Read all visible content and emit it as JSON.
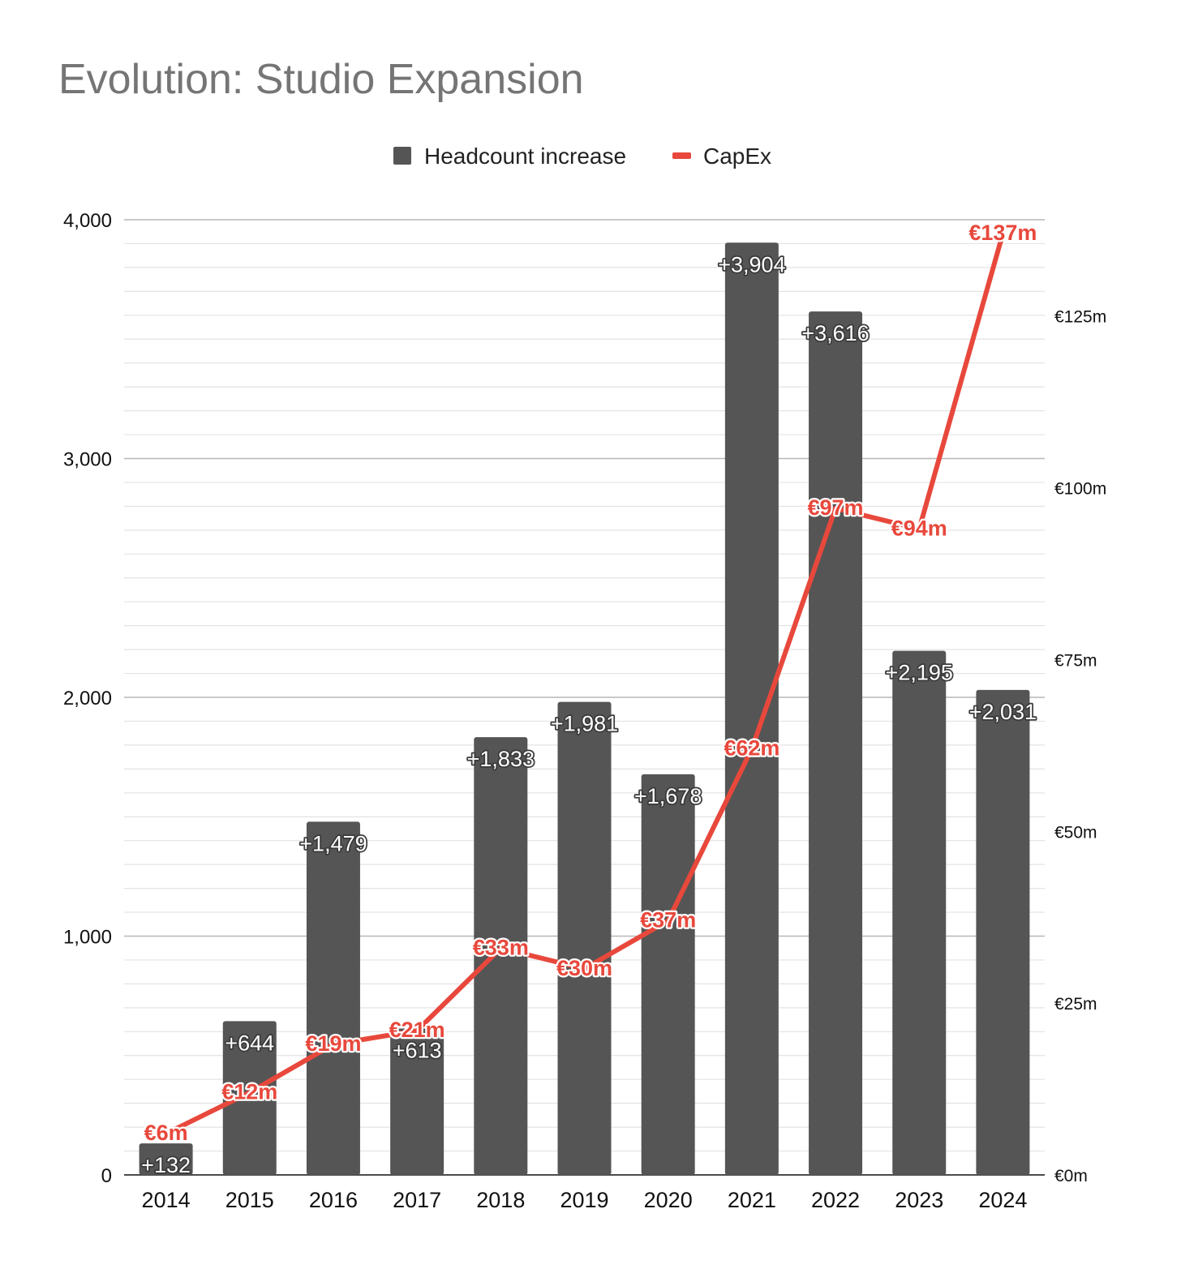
{
  "chart_data": {
    "type": "bar",
    "title": "Evolution: Studio Expansion",
    "categories": [
      "2014",
      "2015",
      "2016",
      "2017",
      "2018",
      "2019",
      "2020",
      "2021",
      "2022",
      "2023",
      "2024"
    ],
    "series": [
      {
        "name": "Headcount increase",
        "type": "bar",
        "axis": "left",
        "values": [
          132,
          644,
          1479,
          613,
          1833,
          1981,
          1678,
          3904,
          3616,
          2195,
          2031
        ],
        "labels": [
          "+132",
          "+644",
          "+1,479",
          "+613",
          "+1,833",
          "+1,981",
          "+1,678",
          "+3,904",
          "+3,616",
          "+2,195",
          "+2,031"
        ]
      },
      {
        "name": "CapEx",
        "type": "line",
        "axis": "right",
        "values": [
          6,
          12,
          19,
          21,
          33,
          30,
          37,
          62,
          97,
          94,
          137
        ],
        "labels": [
          "€6m",
          "€12m",
          "€19m",
          "€21m",
          "€33m",
          "€30m",
          "€37m",
          "€62m",
          "€97m",
          "€94m",
          "€137m"
        ]
      }
    ],
    "y_left": {
      "range": [
        0,
        4000
      ],
      "ticks": [
        0,
        1000,
        2000,
        3000,
        4000
      ],
      "tick_labels": [
        "0",
        "1,000",
        "2,000",
        "3,000",
        "4,000"
      ]
    },
    "y_right": {
      "range": [
        0,
        139
      ],
      "ticks": [
        0,
        25,
        50,
        75,
        100,
        125
      ],
      "tick_labels": [
        "€0m",
        "€25m",
        "€50m",
        "€75m",
        "€100m",
        "€125m"
      ]
    },
    "legend": {
      "position": "top-center",
      "entries": [
        "Headcount increase",
        "CapEx"
      ]
    },
    "grid": true,
    "colors": {
      "bars": "#555555",
      "line": "#e8483c",
      "title": "#757575",
      "major_grid": "#b7b7b7",
      "minor_grid": "#e3e3e3"
    }
  }
}
